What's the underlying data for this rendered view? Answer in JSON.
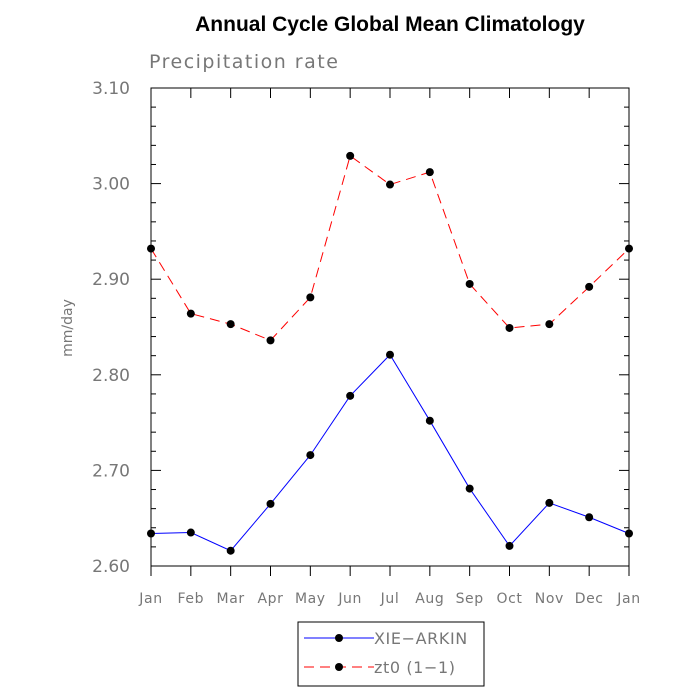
{
  "chart_data": {
    "type": "line",
    "title": "Annual Cycle Global Mean Climatology",
    "subtitle": "Precipitation rate",
    "xlabel": "",
    "ylabel": "mm/day",
    "categories": [
      "Jan",
      "Feb",
      "Mar",
      "Apr",
      "May",
      "Jun",
      "Jul",
      "Aug",
      "Sep",
      "Oct",
      "Nov",
      "Dec",
      "Jan"
    ],
    "ylim": [
      2.6,
      3.1
    ],
    "yticks": [
      "2.60",
      "2.70",
      "2.80",
      "2.90",
      "3.00",
      "3.10"
    ],
    "series": [
      {
        "name": "XIE−ARKIN",
        "color": "#0000ff",
        "dash": "solid",
        "values": [
          2.634,
          2.635,
          2.616,
          2.665,
          2.716,
          2.778,
          2.821,
          2.752,
          2.681,
          2.621,
          2.666,
          2.651,
          2.634
        ]
      },
      {
        "name": "zt0 (1−1)",
        "color": "#ff0000",
        "dash": "dashed",
        "values": [
          2.932,
          2.864,
          2.853,
          2.836,
          2.881,
          3.029,
          2.999,
          3.012,
          2.895,
          2.849,
          2.853,
          2.892,
          2.932
        ]
      }
    ],
    "legend_position": "bottom-center",
    "marker_color": "#000000"
  }
}
